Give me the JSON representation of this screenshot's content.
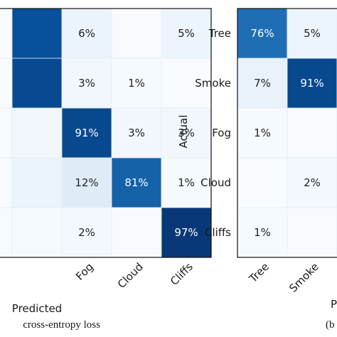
{
  "chart_data": [
    {
      "type": "heatmap",
      "title": "",
      "xlabel": "Predicted",
      "ylabel": "",
      "caption": "cross-entropy loss",
      "x_categories": [
        "",
        "",
        "Fog",
        "Cloud",
        "Cliffs"
      ],
      "y_categories": [
        "",
        "",
        "",
        "",
        ""
      ],
      "cells": [
        [
          "",
          "",
          "6%",
          "",
          "5%"
        ],
        [
          "",
          "",
          "3%",
          "1%",
          ""
        ],
        [
          "",
          "",
          "91%",
          "3%",
          "3%"
        ],
        [
          "",
          "",
          "12%",
          "81%",
          "1%"
        ],
        [
          "",
          "",
          "2%",
          "",
          "97%"
        ]
      ],
      "values": [
        [
          null,
          88,
          6,
          0,
          5
        ],
        [
          null,
          90,
          3,
          1,
          0
        ],
        [
          null,
          3,
          91,
          3,
          3
        ],
        [
          null,
          6,
          12,
          81,
          1
        ],
        [
          null,
          1,
          2,
          0,
          97
        ]
      ],
      "value_range": [
        0,
        100
      ],
      "colormap": "Blues"
    },
    {
      "type": "heatmap",
      "title": "",
      "xlabel": "P",
      "ylabel": "Actual",
      "caption": "(b",
      "x_categories": [
        "Tree",
        "Smoke",
        ""
      ],
      "y_categories": [
        "Tree",
        "Smoke",
        "Fog",
        "Cloud",
        "Cliffs"
      ],
      "cells": [
        [
          "76%",
          "5%",
          ""
        ],
        [
          "7%",
          "91%",
          ""
        ],
        [
          "1%",
          "",
          ""
        ],
        [
          "",
          "2%",
          ""
        ],
        [
          "1%",
          "",
          ""
        ]
      ],
      "values": [
        [
          76,
          5,
          null
        ],
        [
          7,
          91,
          null
        ],
        [
          1,
          0,
          null
        ],
        [
          0,
          2,
          null
        ],
        [
          1,
          0,
          null
        ]
      ],
      "value_range": [
        0,
        100
      ],
      "colormap": "Blues"
    }
  ]
}
